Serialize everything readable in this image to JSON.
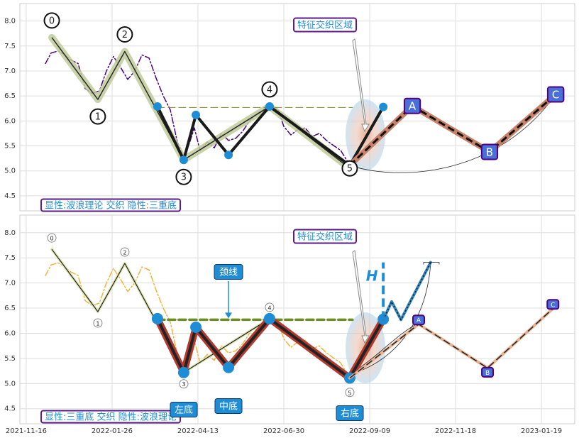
{
  "chart_data": [
    {
      "type": "line",
      "xlim": [
        -3.7,
        319.4
      ],
      "xticks": [
        0,
        50,
        100,
        150,
        200,
        250,
        300
      ],
      "ylim": [
        4.2,
        8.35
      ],
      "yticks": [
        4.5,
        {
          "value": 5,
          "label": "5.0"
        },
        5.5,
        {
          "value": 6,
          "label": "6.0"
        },
        6.5,
        {
          "value": 7,
          "label": "7.0"
        },
        7.5,
        {
          "value": 8,
          "label": "8.0"
        }
      ],
      "grid": true,
      "annotation": "特征交织区域",
      "caption": "显性:波浪理论 交织 隐性:三重底",
      "series": [
        {
          "role": "price",
          "color": "#4b0082",
          "width": 1.5,
          "dash": "dashdot",
          "x": [
            11.2,
            14.5,
            18.6,
            22.7,
            26.0,
            30.2,
            34.3,
            38.4,
            42.6,
            46.7,
            50.8,
            55.0,
            59.1,
            63.2,
            67.4,
            71.5,
            75.6,
            79.8,
            83.9,
            88.0,
            91.3,
            94.6,
            97.9,
            101.2,
            105.4,
            109.5,
            113.6,
            117.8,
            121.9,
            126.0,
            130.2,
            134.3,
            138.4,
            142.6,
            146.7,
            150.0,
            154.1,
            158.3,
            162.4,
            166.5,
            170.7,
            174.8,
            178.9,
            183.1,
            187.2
          ],
          "values": [
            7.15,
            7.36,
            7.4,
            7.32,
            7.22,
            7.15,
            6.65,
            6.55,
            6.6,
            7.0,
            7.29,
            7.07,
            6.83,
            7.0,
            7.32,
            7.26,
            6.86,
            6.5,
            6.22,
            5.58,
            5.29,
            5.51,
            5.86,
            5.41,
            5.58,
            5.46,
            5.75,
            5.61,
            5.65,
            5.79,
            6.01,
            6.15,
            6.22,
            6.26,
            6.22,
            5.89,
            5.72,
            5.83,
            5.86,
            5.69,
            5.75,
            5.61,
            5.51,
            5.41,
            5.18
          ]
        },
        {
          "role": "wave",
          "color": "#bfcb9a",
          "width": 10,
          "dash": "solid",
          "core": "#2a2a2a",
          "core_width": 1.5,
          "x": [
            14.9,
            41.7,
            57.4,
            91.7,
            141.7,
            188.4
          ],
          "values": [
            7.67,
            6.43,
            7.39,
            5.22,
            6.29,
            5.05
          ],
          "point_labels": [
            "0",
            "1",
            "2",
            "3",
            "4",
            "5"
          ],
          "label_style": "circle",
          "label_size": "large"
        },
        {
          "role": "neckline",
          "color": "#7a8c2a",
          "width": 1,
          "dash": "dashed",
          "x": [
            76.4,
            190
          ],
          "values": [
            6.27,
            6.27
          ]
        },
        {
          "role": "pattern",
          "color": "#1a1a1a",
          "width": 4,
          "dash": "solid",
          "markers": "#1f8dd6",
          "marker_size": "small",
          "x": [
            76.4,
            91.7,
            98.8,
            117.8,
            141.7,
            188.4,
            207.9
          ],
          "values": [
            6.29,
            5.22,
            6.12,
            5.32,
            6.29,
            5.11,
            6.28
          ]
        },
        {
          "role": "projection",
          "color": "#c8826a",
          "width": 8,
          "dash": "solid",
          "core": "#111",
          "core_width": 3,
          "core_dash": "dashed",
          "x": [
            188.4,
            224.8,
            269.8,
            308.3
          ],
          "values": [
            5.11,
            6.3,
            5.38,
            6.53
          ],
          "point_labels": [
            null,
            "A",
            "B",
            "C"
          ],
          "label_style": "box",
          "label_size": "large"
        }
      ]
    },
    {
      "type": "line",
      "xlim": [
        -3.7,
        319.4
      ],
      "xticks": [
        {
          "value": 0,
          "label": "2021-11-16"
        },
        {
          "value": 50,
          "label": "2022-01-26"
        },
        {
          "value": 100,
          "label": "2022-04-13"
        },
        {
          "value": 150,
          "label": "2022-06-30"
        },
        {
          "value": 200,
          "label": "2022-09-09"
        },
        {
          "value": 250,
          "label": "2022-11-18"
        },
        {
          "value": 300,
          "label": "2023-01-19"
        }
      ],
      "ylim": [
        4.2,
        8.35
      ],
      "yticks": [
        4.5,
        {
          "value": 5,
          "label": "5.0"
        },
        5.5,
        {
          "value": 6,
          "label": "6.0"
        },
        6.5,
        {
          "value": 7,
          "label": "7.0"
        },
        7.5,
        {
          "value": 8,
          "label": "8.0"
        }
      ],
      "grid": true,
      "annotation": "特征交织区域",
      "caption": "显性:三重底 交织 隐性:波浪理论",
      "neckline_label": "颈线",
      "bottom_labels": [
        "左底",
        "中底",
        "右底"
      ],
      "height_label": "H",
      "series": [
        {
          "role": "price",
          "color": "#f0b43c",
          "width": 1.5,
          "dash": "dashdot",
          "x": [
            11.2,
            14.5,
            18.6,
            22.7,
            26.0,
            30.2,
            34.3,
            38.4,
            42.6,
            46.7,
            50.8,
            55.0,
            59.1,
            63.2,
            67.4,
            71.5,
            75.6,
            79.8,
            83.9,
            88.0,
            91.3,
            94.6,
            97.9,
            101.2,
            105.4,
            109.5,
            113.6,
            117.8,
            121.9,
            126.0,
            130.2,
            134.3,
            138.4,
            142.6,
            146.7,
            150.0,
            154.1,
            158.3,
            162.4,
            166.5,
            170.7,
            174.8,
            178.9,
            183.1,
            187.2
          ],
          "values": [
            7.15,
            7.36,
            7.4,
            7.32,
            7.22,
            7.15,
            6.65,
            6.55,
            6.6,
            7.0,
            7.29,
            7.07,
            6.83,
            7.0,
            7.32,
            7.26,
            6.86,
            6.5,
            6.22,
            5.58,
            5.29,
            5.51,
            5.86,
            5.41,
            5.58,
            5.46,
            5.75,
            5.61,
            5.65,
            5.79,
            6.01,
            6.15,
            6.22,
            6.26,
            6.22,
            5.89,
            5.72,
            5.83,
            5.86,
            5.69,
            5.75,
            5.61,
            5.51,
            5.41,
            5.18
          ]
        },
        {
          "role": "wave",
          "color": "#dfe6b4",
          "width": 4,
          "dash": "solid",
          "core": "#222",
          "core_width": 1.2,
          "x": [
            14.9,
            41.7,
            57.4,
            91.7,
            141.7,
            188.4
          ],
          "values": [
            7.67,
            6.43,
            7.39,
            5.22,
            6.29,
            5.05
          ],
          "point_labels": [
            "0",
            "1",
            "2",
            "3",
            "4",
            "5"
          ],
          "label_style": "circle",
          "label_size": "small"
        },
        {
          "role": "neckline",
          "color": "#6b8e23",
          "width": 3.5,
          "dash": "dashed",
          "x": [
            76.4,
            190
          ],
          "values": [
            6.27,
            6.27
          ]
        },
        {
          "role": "pattern",
          "color": "#b23a30",
          "width": 10,
          "dash": "solid",
          "core": "#222",
          "core_width": 4,
          "markers": "#1f8dd6",
          "marker_size": "large",
          "x": [
            76.4,
            91.7,
            98.8,
            117.8,
            141.7,
            188.4,
            207.9
          ],
          "values": [
            6.29,
            5.22,
            6.12,
            5.32,
            6.29,
            5.11,
            6.28
          ]
        },
        {
          "role": "projection",
          "color": "#e9b08f",
          "width": 4,
          "dash": "solid",
          "core": "#222",
          "core_width": 1.5,
          "core_dash": "dashed",
          "x": [
            188.4,
            228.5,
            268.6,
            306.7
          ],
          "values": [
            5.11,
            6.18,
            5.31,
            6.49
          ],
          "point_labels": [
            null,
            "A",
            "B",
            "C"
          ],
          "label_style": "box",
          "label_size": "small"
        },
        {
          "role": "breakout",
          "color": "#2e86c1",
          "width": 4,
          "dash": "solid",
          "core": "#111",
          "core_width": 1.5,
          "core_dash": "dotted",
          "x": [
            207.9,
            212.8,
            218.2,
            235.5
          ],
          "values": [
            6.27,
            6.63,
            6.27,
            7.41
          ]
        }
      ]
    }
  ]
}
